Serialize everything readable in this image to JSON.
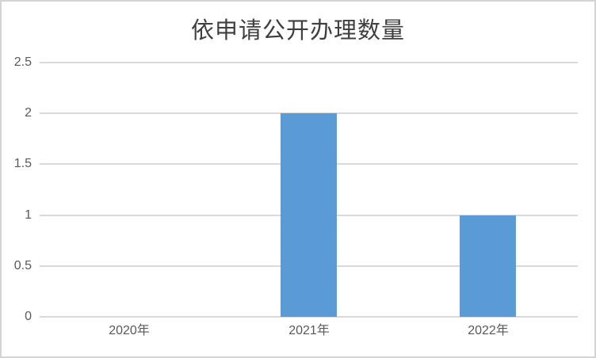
{
  "chart_data": {
    "type": "bar",
    "title": "依申请公开办理数量",
    "categories": [
      "2020年",
      "2021年",
      "2022年"
    ],
    "values": [
      0,
      2,
      1
    ],
    "xlabel": "",
    "ylabel": "",
    "ylim": [
      0,
      2.5
    ],
    "ytick_interval": 0.5,
    "ytick_labels": [
      "0",
      "0.5",
      "1",
      "1.5",
      "2",
      "2.5"
    ],
    "grid": true,
    "legend_shown": false
  },
  "colors": {
    "bar": "#5B9BD5",
    "gridline": "#D9D9D9",
    "axis_label": "#595959",
    "title": "#3F3F3F",
    "frame_border": "#D4D4D4"
  }
}
